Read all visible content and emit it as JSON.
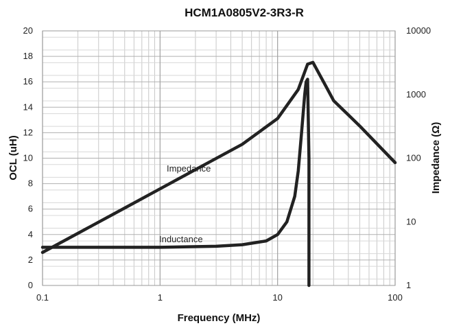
{
  "chart_data": {
    "type": "line",
    "title": "HCM1A0805V2-3R3-R",
    "xlabel": "Frequency (MHz)",
    "ylabel": "OCL (uH)",
    "y2label": "Impedance (Ω)",
    "xscale": "log",
    "xlim": [
      0.1,
      100
    ],
    "ylim": [
      0,
      20
    ],
    "y2scale": "log",
    "y2lim": [
      1,
      10000
    ],
    "grid": true,
    "x_ticks": [
      "0.1",
      "1",
      "10",
      "100"
    ],
    "y_ticks": [
      "0",
      "2",
      "4",
      "6",
      "8",
      "10",
      "12",
      "14",
      "16",
      "18",
      "20"
    ],
    "y2_ticks": [
      "1",
      "10",
      "100",
      "1000",
      "10000"
    ],
    "series": [
      {
        "name": "Impedance",
        "axis": "right",
        "x": [
          0.1,
          0.2,
          0.5,
          1,
          2,
          5,
          10,
          15,
          18,
          20,
          25,
          30,
          50,
          100
        ],
        "y": [
          3.3,
          6.6,
          16.5,
          33,
          66,
          165,
          420,
          1200,
          3000,
          3200,
          1500,
          800,
          320,
          85
        ]
      },
      {
        "name": "Inductance",
        "axis": "left",
        "x": [
          0.1,
          0.3,
          1,
          3,
          5,
          8,
          10,
          12,
          14,
          15,
          16,
          17,
          17.5,
          18,
          18.5,
          18.5
        ],
        "y": [
          3.0,
          3.0,
          3.0,
          3.08,
          3.2,
          3.5,
          4.0,
          5.0,
          7.0,
          9.0,
          12.0,
          15.0,
          16.0,
          16.2,
          10.0,
          0
        ]
      }
    ],
    "annotations": [
      "Impedance",
      "Inductance"
    ]
  }
}
